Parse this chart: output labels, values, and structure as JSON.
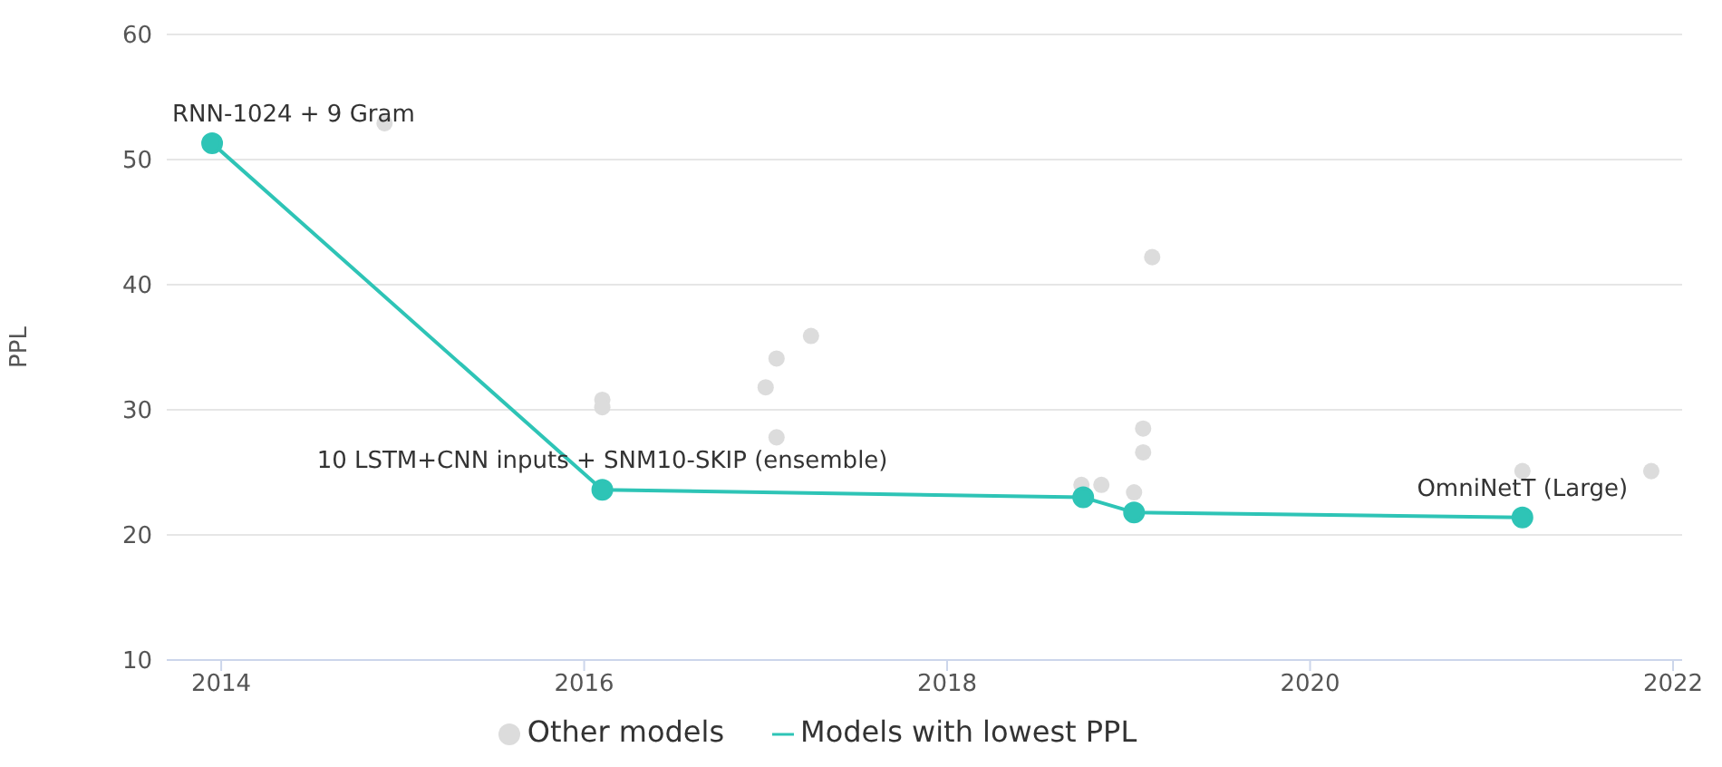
{
  "chart_data": {
    "type": "scatter",
    "ylabel": "PPL",
    "xlim": [
      2013.7,
      2022.05
    ],
    "xticks": [
      2014,
      2016,
      2018,
      2020,
      2022
    ],
    "ylim": [
      10,
      60
    ],
    "yticks": [
      10,
      20,
      30,
      40,
      50,
      60
    ],
    "grid": "y",
    "legend": "bottom",
    "marker": "circle",
    "series": [
      {
        "name": "Other models",
        "color": "#dcdcdc",
        "x": [
          2014.9,
          2016.1,
          2016.1,
          2017.0,
          2017.06,
          2017.25,
          2017.06,
          2018.74,
          2018.85,
          2019.03,
          2019.08,
          2019.08,
          2019.13,
          2021.17,
          2021.88
        ],
        "values": [
          52.9,
          30.8,
          30.2,
          31.8,
          34.1,
          35.9,
          27.8,
          24.0,
          24.0,
          23.4,
          28.5,
          26.6,
          42.2,
          25.1,
          25.1
        ]
      },
      {
        "name": "Models with lowest PPL",
        "type": "line",
        "color": "#2ec4b6",
        "x": [
          2013.95,
          2016.1,
          2018.75,
          2019.03,
          2021.17
        ],
        "values": [
          51.3,
          23.6,
          23.0,
          21.8,
          21.4
        ]
      }
    ],
    "annotations": [
      {
        "text": "RNN-1024 + 9 Gram",
        "x": 2013.95,
        "y": 51.3
      },
      {
        "text": "10 LSTM+CNN inputs + SNM10-SKIP (ensemble)",
        "x": 2016.1,
        "y": 23.6
      },
      {
        "text": "OmniNetT (Large)",
        "x": 2021.17,
        "y": 21.4
      }
    ]
  }
}
